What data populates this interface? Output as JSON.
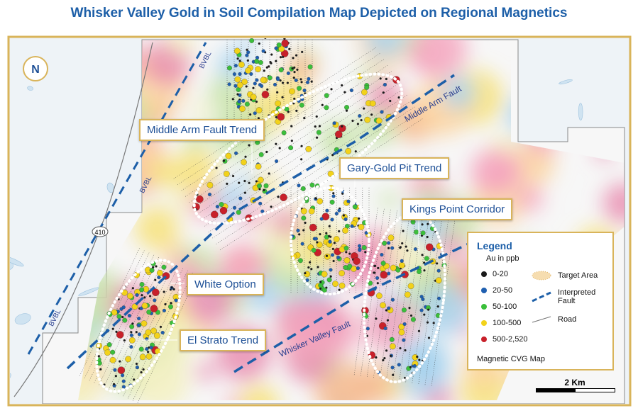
{
  "title": "Whisker Valley Gold in Soil Compilation Map Depicted on Regional Magnetics",
  "north_arrow": "N",
  "map": {
    "trends": [
      "Middle Arm Fault Trend",
      "Gary-Gold Pit Trend",
      "Kings Point Corridor",
      "White Option",
      "El Strato Trend"
    ],
    "faults": [
      "Middle Arm Fault",
      "Whisker Valley Fault"
    ],
    "boundary_labels": [
      "BVBL",
      "BVBL",
      "BVBL"
    ],
    "road_number": "410"
  },
  "legend": {
    "title": "Legend",
    "subtitle": "Au in ppb",
    "au_classes": [
      {
        "label": "0-20",
        "color": "#1a1a1a"
      },
      {
        "label": "20-50",
        "color": "#1f5fb0"
      },
      {
        "label": "50-100",
        "color": "#3bbf3b"
      },
      {
        "label": "100-500",
        "color": "#f2d21a"
      },
      {
        "label": "500-2,520",
        "color": "#c8202a"
      }
    ],
    "symbols": [
      "Target Area",
      "Interpreted Fault",
      "Road"
    ],
    "base_map": "Magnetic CVG Map"
  },
  "scale_bar": "2 Km"
}
